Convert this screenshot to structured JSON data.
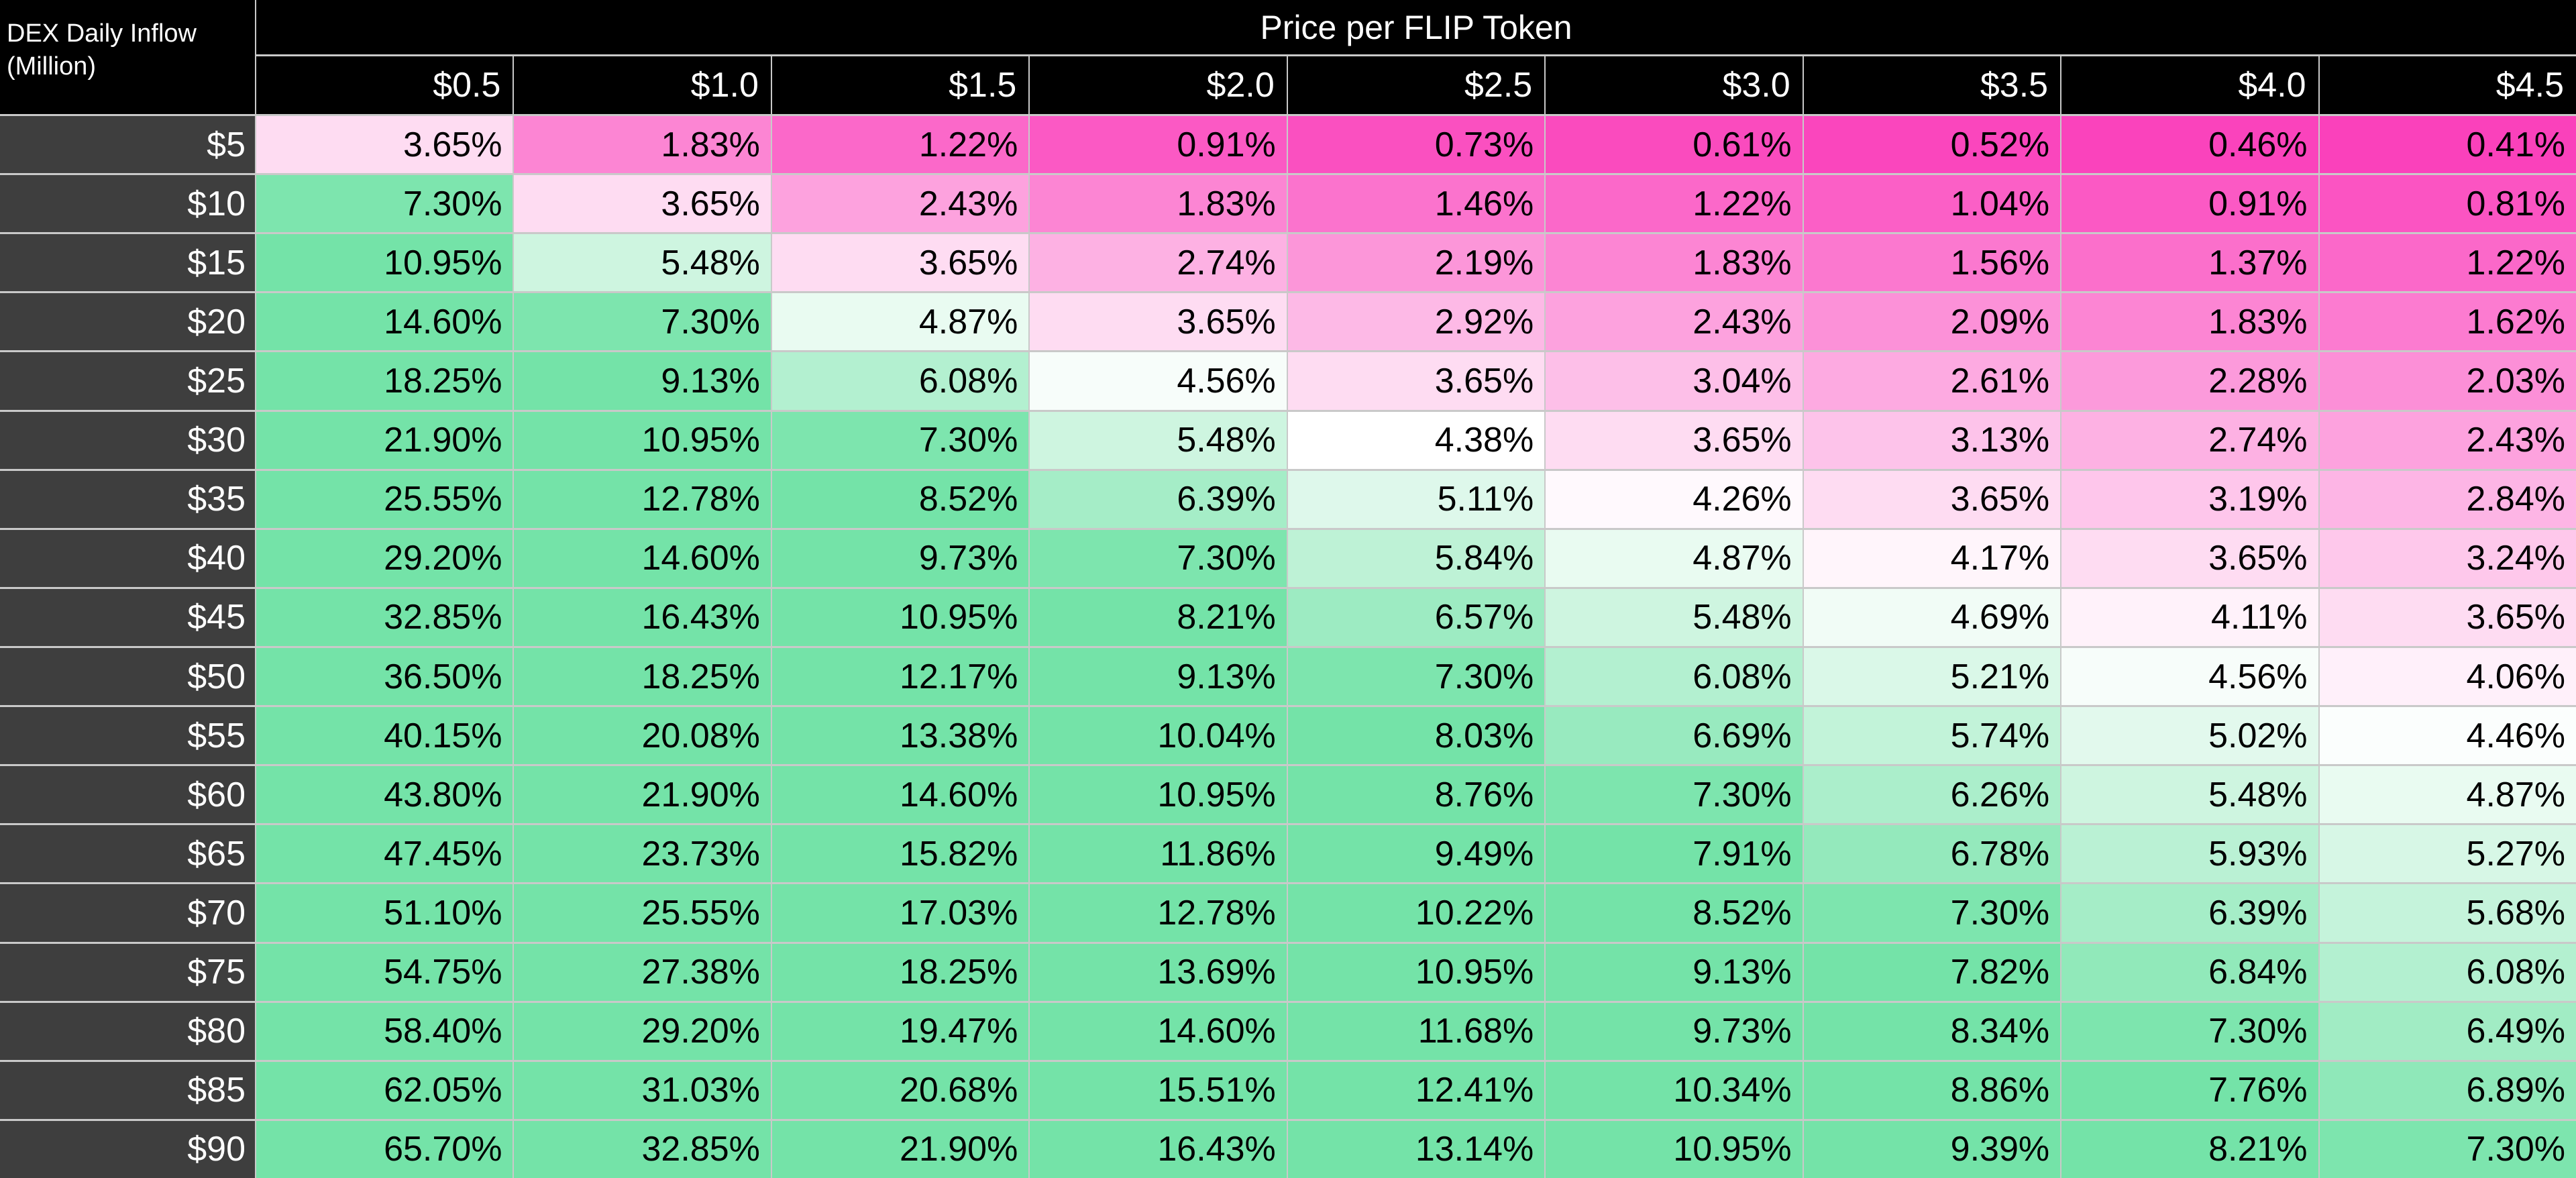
{
  "table": {
    "corner_lines": [
      "DEX Daily Inflow",
      "(Million)"
    ],
    "title": "Price per FLIP Token",
    "column_headers": [
      "$0.5",
      "$1.0",
      "$1.5",
      "$2.0",
      "$2.5",
      "$3.0",
      "$3.5",
      "$4.0",
      "$4.5"
    ],
    "rows": [
      {
        "label": "$5",
        "values": [
          "3.65%",
          "1.83%",
          "1.22%",
          "0.91%",
          "0.73%",
          "0.61%",
          "0.52%",
          "0.46%",
          "0.41%"
        ]
      },
      {
        "label": "$10",
        "values": [
          "7.30%",
          "3.65%",
          "2.43%",
          "1.83%",
          "1.46%",
          "1.22%",
          "1.04%",
          "0.91%",
          "0.81%"
        ]
      },
      {
        "label": "$15",
        "values": [
          "10.95%",
          "5.48%",
          "3.65%",
          "2.74%",
          "2.19%",
          "1.83%",
          "1.56%",
          "1.37%",
          "1.22%"
        ]
      },
      {
        "label": "$20",
        "values": [
          "14.60%",
          "7.30%",
          "4.87%",
          "3.65%",
          "2.92%",
          "2.43%",
          "2.09%",
          "1.83%",
          "1.62%"
        ]
      },
      {
        "label": "$25",
        "values": [
          "18.25%",
          "9.13%",
          "6.08%",
          "4.56%",
          "3.65%",
          "3.04%",
          "2.61%",
          "2.28%",
          "2.03%"
        ]
      },
      {
        "label": "$30",
        "values": [
          "21.90%",
          "10.95%",
          "7.30%",
          "5.48%",
          "4.38%",
          "3.65%",
          "3.13%",
          "2.74%",
          "2.43%"
        ]
      },
      {
        "label": "$35",
        "values": [
          "25.55%",
          "12.78%",
          "8.52%",
          "6.39%",
          "5.11%",
          "4.26%",
          "3.65%",
          "3.19%",
          "2.84%"
        ]
      },
      {
        "label": "$40",
        "values": [
          "29.20%",
          "14.60%",
          "9.73%",
          "7.30%",
          "5.84%",
          "4.87%",
          "4.17%",
          "3.65%",
          "3.24%"
        ]
      },
      {
        "label": "$45",
        "values": [
          "32.85%",
          "16.43%",
          "10.95%",
          "8.21%",
          "6.57%",
          "5.48%",
          "4.69%",
          "4.11%",
          "3.65%"
        ]
      },
      {
        "label": "$50",
        "values": [
          "36.50%",
          "18.25%",
          "12.17%",
          "9.13%",
          "7.30%",
          "6.08%",
          "5.21%",
          "4.56%",
          "4.06%"
        ]
      },
      {
        "label": "$55",
        "values": [
          "40.15%",
          "20.08%",
          "13.38%",
          "10.04%",
          "8.03%",
          "6.69%",
          "5.74%",
          "5.02%",
          "4.46%"
        ]
      },
      {
        "label": "$60",
        "values": [
          "43.80%",
          "21.90%",
          "14.60%",
          "10.95%",
          "8.76%",
          "7.30%",
          "6.26%",
          "5.48%",
          "4.87%"
        ]
      },
      {
        "label": "$65",
        "values": [
          "47.45%",
          "23.73%",
          "15.82%",
          "11.86%",
          "9.49%",
          "7.91%",
          "6.78%",
          "5.93%",
          "5.27%"
        ]
      },
      {
        "label": "$70",
        "values": [
          "51.10%",
          "25.55%",
          "17.03%",
          "12.78%",
          "10.22%",
          "8.52%",
          "7.30%",
          "6.39%",
          "5.68%"
        ]
      },
      {
        "label": "$75",
        "values": [
          "54.75%",
          "27.38%",
          "18.25%",
          "13.69%",
          "10.95%",
          "9.13%",
          "7.82%",
          "6.84%",
          "6.08%"
        ]
      },
      {
        "label": "$80",
        "values": [
          "58.40%",
          "29.20%",
          "19.47%",
          "14.60%",
          "11.68%",
          "9.73%",
          "8.34%",
          "7.30%",
          "6.49%"
        ]
      },
      {
        "label": "$85",
        "values": [
          "62.05%",
          "31.03%",
          "20.68%",
          "15.51%",
          "12.41%",
          "10.34%",
          "8.86%",
          "7.76%",
          "6.89%"
        ]
      },
      {
        "label": "$90",
        "values": [
          "65.70%",
          "32.85%",
          "21.90%",
          "16.43%",
          "13.14%",
          "10.95%",
          "9.39%",
          "8.21%",
          "7.30%"
        ]
      }
    ]
  },
  "colors": {
    "header_bg": "#000000",
    "header_text": "#FFFFFF",
    "row_header_bg": "#3E3E3E",
    "gridline": "#C9C9C9",
    "cell_text": "#000000",
    "scale": {
      "pink": "#FA41BB",
      "white": "#FFFFFF",
      "green": "#74E3A8",
      "min_value": 0.41,
      "mid_value": 4.38,
      "max_saturation_value": 7.5
    }
  },
  "chart_data": {
    "type": "heatmap",
    "title": "Price per FLIP Token",
    "row_axis_label": "DEX Daily Inflow (Million)",
    "unit": "%",
    "x_categories": [
      "$0.5",
      "$1.0",
      "$1.5",
      "$2.0",
      "$2.5",
      "$3.0",
      "$3.5",
      "$4.0",
      "$4.5"
    ],
    "y_categories": [
      "$5",
      "$10",
      "$15",
      "$20",
      "$25",
      "$30",
      "$35",
      "$40",
      "$45",
      "$50",
      "$55",
      "$60",
      "$65",
      "$70",
      "$75",
      "$80",
      "$85",
      "$90"
    ],
    "values": [
      [
        3.65,
        1.83,
        1.22,
        0.91,
        0.73,
        0.61,
        0.52,
        0.46,
        0.41
      ],
      [
        7.3,
        3.65,
        2.43,
        1.83,
        1.46,
        1.22,
        1.04,
        0.91,
        0.81
      ],
      [
        10.95,
        5.48,
        3.65,
        2.74,
        2.19,
        1.83,
        1.56,
        1.37,
        1.22
      ],
      [
        14.6,
        7.3,
        4.87,
        3.65,
        2.92,
        2.43,
        2.09,
        1.83,
        1.62
      ],
      [
        18.25,
        9.13,
        6.08,
        4.56,
        3.65,
        3.04,
        2.61,
        2.28,
        2.03
      ],
      [
        21.9,
        10.95,
        7.3,
        5.48,
        4.38,
        3.65,
        3.13,
        2.74,
        2.43
      ],
      [
        25.55,
        12.78,
        8.52,
        6.39,
        5.11,
        4.26,
        3.65,
        3.19,
        2.84
      ],
      [
        29.2,
        14.6,
        9.73,
        7.3,
        5.84,
        4.87,
        4.17,
        3.65,
        3.24
      ],
      [
        32.85,
        16.43,
        10.95,
        8.21,
        6.57,
        5.48,
        4.69,
        4.11,
        3.65
      ],
      [
        36.5,
        18.25,
        12.17,
        9.13,
        7.3,
        6.08,
        5.21,
        4.56,
        4.06
      ],
      [
        40.15,
        20.08,
        13.38,
        10.04,
        8.03,
        6.69,
        5.74,
        5.02,
        4.46
      ],
      [
        43.8,
        21.9,
        14.6,
        10.95,
        8.76,
        7.3,
        6.26,
        5.48,
        4.87
      ],
      [
        47.45,
        23.73,
        15.82,
        11.86,
        9.49,
        7.91,
        6.78,
        5.93,
        5.27
      ],
      [
        51.1,
        25.55,
        17.03,
        12.78,
        10.22,
        8.52,
        7.3,
        6.39,
        5.68
      ],
      [
        54.75,
        27.38,
        18.25,
        13.69,
        10.95,
        9.13,
        7.82,
        6.84,
        6.08
      ],
      [
        58.4,
        29.2,
        19.47,
        14.6,
        11.68,
        9.73,
        8.34,
        7.3,
        6.49
      ],
      [
        62.05,
        31.03,
        20.68,
        15.51,
        12.41,
        10.34,
        8.86,
        7.76,
        6.89
      ],
      [
        65.7,
        32.85,
        21.9,
        16.43,
        13.14,
        10.95,
        9.39,
        8.21,
        7.3
      ]
    ],
    "color_scale": {
      "low": "#FA41BB",
      "mid": "#FFFFFF",
      "high": "#74E3A8",
      "legend": false,
      "grid": true
    }
  }
}
